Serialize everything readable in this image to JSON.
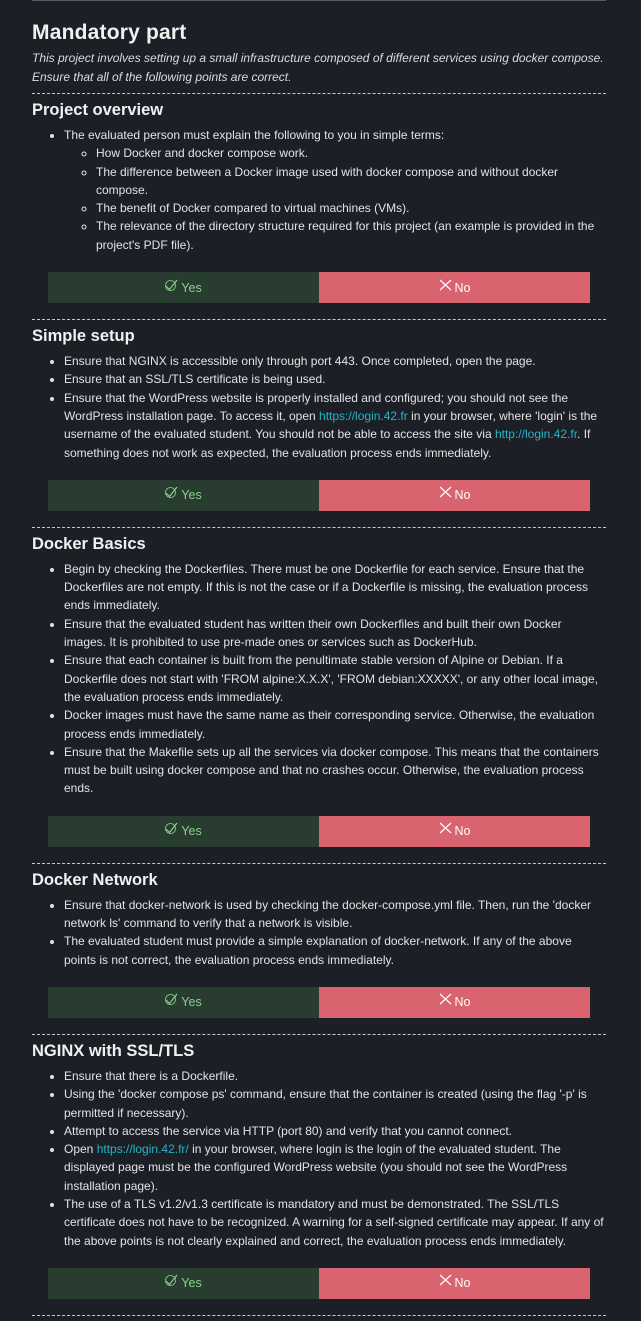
{
  "title": "Mandatory part",
  "intro": "This project involves setting up a small infrastructure composed of different services using docker compose. Ensure that all of the following points are correct.",
  "buttons": {
    "yes": "Yes",
    "no": "No"
  },
  "overview": {
    "heading": "Project overview",
    "lead": "The evaluated person must explain the following to you in simple terms:",
    "points": [
      "How Docker and docker compose work.",
      "The difference between a Docker image used with docker compose and without docker compose.",
      "The benefit of Docker compared to virtual machines (VMs).",
      "The relevance of the directory structure required for this project (an example is provided in the project's PDF file)."
    ]
  },
  "setup": {
    "heading": "Simple setup",
    "item1": "Ensure that NGINX is accessible only through port 443. Once completed, open the page.",
    "item2": "Ensure that an SSL/TLS certificate is being used.",
    "item3_a": "Ensure that the WordPress website is properly installed and configured; you should not see the WordPress installation page. To access it, open ",
    "item3_link1": "https://login.42.fr",
    "item3_b": " in your browser, where 'login' is the username of the evaluated student. You should not be able to access the site via ",
    "item3_link2": "http://login.42.fr",
    "item3_c": ". If something does not work as expected, the evaluation process ends immediately."
  },
  "basics": {
    "heading": "Docker Basics",
    "items": [
      "Begin by checking the Dockerfiles. There must be one Dockerfile for each service. Ensure that the Dockerfiles are not empty. If this is not the case or if a Dockerfile is missing, the evaluation process ends immediately.",
      "Ensure that the evaluated student has written their own Dockerfiles and built their own Docker images. It is prohibited to use pre-made ones or services such as DockerHub.",
      "Ensure that each container is built from the penultimate stable version of Alpine or Debian. If a Dockerfile does not start with 'FROM alpine:X.X.X', 'FROM debian:XXXXX', or any other local image, the evaluation process ends immediately.",
      "Docker images must have the same name as their corresponding service. Otherwise, the evaluation process ends immediately.",
      "Ensure that the Makefile sets up all the services via docker compose. This means that the containers must be built using docker compose and that no crashes occur. Otherwise, the evaluation process ends."
    ]
  },
  "network": {
    "heading": "Docker Network",
    "items": [
      "Ensure that docker-network is used by checking the docker-compose.yml file. Then, run the 'docker network ls' command to verify that a network is visible.",
      "The evaluated student must provide a simple explanation of docker-network. If any of the above points is not correct, the evaluation process ends immediately."
    ]
  },
  "nginx": {
    "heading": "NGINX with SSL/TLS",
    "item1": "Ensure that there is a Dockerfile.",
    "item2": "Using the 'docker compose ps' command, ensure that the container is created (using the flag '-p' is permitted if necessary).",
    "item3": "Attempt to access the service via HTTP (port 80) and verify that you cannot connect.",
    "item4_a": "Open ",
    "item4_link": "https://login.42.fr/",
    "item4_b": " in your browser, where login is the login of the evaluated student. The displayed page must be the configured WordPress website (you should not see the WordPress installation page).",
    "item5": "The use of a TLS v1.2/v1.3 certificate is mandatory and must be demonstrated. The SSL/TLS certificate does not have to be recognized. A warning for a self-signed certificate may appear. If any of the above points is not clearly explained and correct, the evaluation process ends immediately."
  }
}
